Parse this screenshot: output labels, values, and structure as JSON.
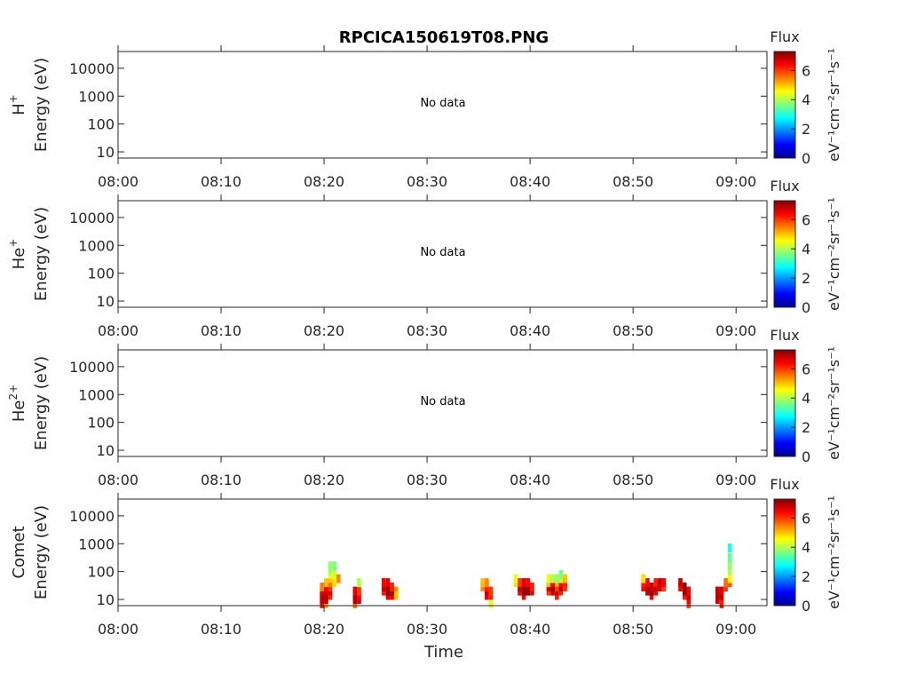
{
  "figure_title": "RPCICA150619T08.PNG",
  "xlabel": "Time",
  "no_data_text": "No data",
  "colorbar": {
    "title": "Flux",
    "unit_label": "eV⁻¹cm⁻²sr⁻¹s⁻¹",
    "ticks": [
      0,
      2,
      4,
      6
    ],
    "range": [
      0,
      7.3
    ],
    "colormap": "jet"
  },
  "x_axis": {
    "start": "08:00",
    "end": "09:03",
    "tick_labels": [
      "08:00",
      "08:10",
      "08:20",
      "08:30",
      "08:40",
      "08:50",
      "09:00"
    ]
  },
  "y_axis": {
    "scale": "log",
    "range": [
      6,
      40000
    ],
    "tick_labels": [
      "10",
      "100",
      "1000",
      "10000"
    ]
  },
  "panels": [
    {
      "ion_base": "H",
      "ion_sup": "+",
      "energy_label": "Energy (eV)",
      "has_data": false
    },
    {
      "ion_base": "He",
      "ion_sup": "+",
      "energy_label": "Energy (eV)",
      "has_data": false
    },
    {
      "ion_base": "He",
      "ion_sup": "2+",
      "energy_label": "Energy (eV)",
      "has_data": false
    },
    {
      "ion_base": "Comet",
      "ion_sup": "",
      "energy_label": "Energy (eV)",
      "has_data": true
    }
  ],
  "chart_data": {
    "type": "heatmap",
    "title": "RPCICA150619T08.PNG",
    "xlabel": "Time",
    "ylabel": "Energy (eV)",
    "yscale": "log",
    "ylim": [
      6,
      40000
    ],
    "xlim": [
      "08:00",
      "09:03"
    ],
    "clim": [
      0,
      7.3
    ],
    "panel": "Comet",
    "cells": [
      {
        "t": "08:19.6",
        "e": 7,
        "v": 6.3
      },
      {
        "t": "08:19.6",
        "e": 10,
        "v": 6.8
      },
      {
        "t": "08:19.6",
        "e": 14,
        "v": 6.9
      },
      {
        "t": "08:19.6",
        "e": 20,
        "v": 6.6
      },
      {
        "t": "08:19.6",
        "e": 28,
        "v": 5.5
      },
      {
        "t": "08:20.0",
        "e": 7,
        "v": 5.2
      },
      {
        "t": "08:20.0",
        "e": 10,
        "v": 6.9
      },
      {
        "t": "08:20.0",
        "e": 14,
        "v": 7.0
      },
      {
        "t": "08:20.0",
        "e": 20,
        "v": 6.8
      },
      {
        "t": "08:20.0",
        "e": 28,
        "v": 6.4
      },
      {
        "t": "08:20.0",
        "e": 40,
        "v": 5.0
      },
      {
        "t": "08:20.4",
        "e": 14,
        "v": 6.2
      },
      {
        "t": "08:20.4",
        "e": 20,
        "v": 6.6
      },
      {
        "t": "08:20.4",
        "e": 28,
        "v": 6.0
      },
      {
        "t": "08:20.4",
        "e": 40,
        "v": 5.6
      },
      {
        "t": "08:20.4",
        "e": 56,
        "v": 5.0
      },
      {
        "t": "08:20.4",
        "e": 80,
        "v": 4.4
      },
      {
        "t": "08:20.4",
        "e": 110,
        "v": 4.0
      },
      {
        "t": "08:20.4",
        "e": 160,
        "v": 3.8
      },
      {
        "t": "08:20.8",
        "e": 40,
        "v": 4.8
      },
      {
        "t": "08:20.8",
        "e": 80,
        "v": 4.2
      },
      {
        "t": "08:20.8",
        "e": 160,
        "v": 3.6
      },
      {
        "t": "08:21.2",
        "e": 56,
        "v": 5.4
      },
      {
        "t": "08:22.8",
        "e": 7,
        "v": 5.6
      },
      {
        "t": "08:22.8",
        "e": 10,
        "v": 6.9
      },
      {
        "t": "08:22.8",
        "e": 14,
        "v": 7.0
      },
      {
        "t": "08:22.8",
        "e": 20,
        "v": 6.6
      },
      {
        "t": "08:23.2",
        "e": 10,
        "v": 6.7
      },
      {
        "t": "08:23.2",
        "e": 14,
        "v": 6.4
      },
      {
        "t": "08:23.2",
        "e": 20,
        "v": 6.0
      },
      {
        "t": "08:23.2",
        "e": 40,
        "v": 4.0
      },
      {
        "t": "08:25.6",
        "e": 20,
        "v": 6.2
      },
      {
        "t": "08:25.6",
        "e": 28,
        "v": 6.8
      },
      {
        "t": "08:25.6",
        "e": 40,
        "v": 6.4
      },
      {
        "t": "08:26.0",
        "e": 14,
        "v": 6.5
      },
      {
        "t": "08:26.0",
        "e": 20,
        "v": 7.1
      },
      {
        "t": "08:26.0",
        "e": 28,
        "v": 7.0
      },
      {
        "t": "08:26.0",
        "e": 40,
        "v": 6.6
      },
      {
        "t": "08:26.4",
        "e": 14,
        "v": 6.6
      },
      {
        "t": "08:26.4",
        "e": 20,
        "v": 6.9
      },
      {
        "t": "08:26.4",
        "e": 28,
        "v": 6.2
      },
      {
        "t": "08:26.8",
        "e": 20,
        "v": 5.4
      },
      {
        "t": "08:26.8",
        "e": 14,
        "v": 5.0
      },
      {
        "t": "08:35.2",
        "e": 28,
        "v": 5.4
      },
      {
        "t": "08:35.2",
        "e": 40,
        "v": 5.0
      },
      {
        "t": "08:35.6",
        "e": 14,
        "v": 6.6
      },
      {
        "t": "08:35.6",
        "e": 20,
        "v": 6.8
      },
      {
        "t": "08:35.6",
        "e": 28,
        "v": 6.2
      },
      {
        "t": "08:35.6",
        "e": 40,
        "v": 5.4
      },
      {
        "t": "08:36.0",
        "e": 7,
        "v": 4.4
      },
      {
        "t": "08:36.0",
        "e": 14,
        "v": 6.2
      },
      {
        "t": "08:36.0",
        "e": 20,
        "v": 6.0
      },
      {
        "t": "08:38.4",
        "e": 40,
        "v": 4.8
      },
      {
        "t": "08:38.4",
        "e": 56,
        "v": 4.4
      },
      {
        "t": "08:38.8",
        "e": 20,
        "v": 6.4
      },
      {
        "t": "08:38.8",
        "e": 28,
        "v": 6.8
      },
      {
        "t": "08:38.8",
        "e": 40,
        "v": 6.0
      },
      {
        "t": "08:39.2",
        "e": 14,
        "v": 6.4
      },
      {
        "t": "08:39.2",
        "e": 20,
        "v": 7.2
      },
      {
        "t": "08:39.2",
        "e": 28,
        "v": 7.1
      },
      {
        "t": "08:39.2",
        "e": 40,
        "v": 6.6
      },
      {
        "t": "08:39.6",
        "e": 20,
        "v": 7.2
      },
      {
        "t": "08:39.6",
        "e": 28,
        "v": 7.0
      },
      {
        "t": "08:39.6",
        "e": 40,
        "v": 6.4
      },
      {
        "t": "08:40.0",
        "e": 20,
        "v": 6.6
      },
      {
        "t": "08:40.0",
        "e": 28,
        "v": 6.2
      },
      {
        "t": "08:41.6",
        "e": 20,
        "v": 6.0
      },
      {
        "t": "08:41.6",
        "e": 28,
        "v": 6.6
      },
      {
        "t": "08:41.6",
        "e": 40,
        "v": 5.0
      },
      {
        "t": "08:41.6",
        "e": 56,
        "v": 4.4
      },
      {
        "t": "08:42.0",
        "e": 20,
        "v": 6.8
      },
      {
        "t": "08:42.0",
        "e": 28,
        "v": 7.2
      },
      {
        "t": "08:42.0",
        "e": 40,
        "v": 6.4
      },
      {
        "t": "08:42.0",
        "e": 56,
        "v": 4.0
      },
      {
        "t": "08:42.4",
        "e": 14,
        "v": 6.2
      },
      {
        "t": "08:42.4",
        "e": 20,
        "v": 6.6
      },
      {
        "t": "08:42.4",
        "e": 28,
        "v": 6.0
      },
      {
        "t": "08:42.4",
        "e": 40,
        "v": 5.2
      },
      {
        "t": "08:42.4",
        "e": 56,
        "v": 3.8
      },
      {
        "t": "08:42.8",
        "e": 20,
        "v": 6.2
      },
      {
        "t": "08:42.8",
        "e": 28,
        "v": 6.8
      },
      {
        "t": "08:42.8",
        "e": 40,
        "v": 6.4
      },
      {
        "t": "08:42.8",
        "e": 56,
        "v": 4.2
      },
      {
        "t": "08:42.8",
        "e": 80,
        "v": 3.6
      },
      {
        "t": "08:43.2",
        "e": 28,
        "v": 6.0
      },
      {
        "t": "08:43.2",
        "e": 40,
        "v": 6.2
      },
      {
        "t": "08:43.2",
        "e": 56,
        "v": 5.0
      },
      {
        "t": "08:50.8",
        "e": 28,
        "v": 6.4
      },
      {
        "t": "08:50.8",
        "e": 40,
        "v": 6.2
      },
      {
        "t": "08:50.8",
        "e": 56,
        "v": 4.8
      },
      {
        "t": "08:51.2",
        "e": 20,
        "v": 6.8
      },
      {
        "t": "08:51.2",
        "e": 28,
        "v": 7.0
      },
      {
        "t": "08:51.2",
        "e": 40,
        "v": 6.4
      },
      {
        "t": "08:51.6",
        "e": 14,
        "v": 6.4
      },
      {
        "t": "08:51.6",
        "e": 20,
        "v": 7.2
      },
      {
        "t": "08:51.6",
        "e": 28,
        "v": 6.8
      },
      {
        "t": "08:52.0",
        "e": 20,
        "v": 6.4
      },
      {
        "t": "08:52.0",
        "e": 28,
        "v": 6.8
      },
      {
        "t": "08:52.0",
        "e": 40,
        "v": 6.2
      },
      {
        "t": "08:52.4",
        "e": 28,
        "v": 6.6
      },
      {
        "t": "08:52.4",
        "e": 40,
        "v": 6.8
      },
      {
        "t": "08:52.8",
        "e": 28,
        "v": 6.0
      },
      {
        "t": "08:52.8",
        "e": 40,
        "v": 6.4
      },
      {
        "t": "08:54.4",
        "e": 28,
        "v": 6.4
      },
      {
        "t": "08:54.4",
        "e": 40,
        "v": 6.8
      },
      {
        "t": "08:54.8",
        "e": 14,
        "v": 6.2
      },
      {
        "t": "08:54.8",
        "e": 20,
        "v": 7.0
      },
      {
        "t": "08:54.8",
        "e": 28,
        "v": 7.2
      },
      {
        "t": "08:55.2",
        "e": 7,
        "v": 6.0
      },
      {
        "t": "08:55.2",
        "e": 10,
        "v": 6.4
      },
      {
        "t": "08:55.2",
        "e": 14,
        "v": 6.8
      },
      {
        "t": "08:55.2",
        "e": 20,
        "v": 6.4
      },
      {
        "t": "08:58.0",
        "e": 10,
        "v": 6.6
      },
      {
        "t": "08:58.0",
        "e": 14,
        "v": 6.9
      },
      {
        "t": "08:58.0",
        "e": 20,
        "v": 6.8
      },
      {
        "t": "08:58.4",
        "e": 7,
        "v": 6.2
      },
      {
        "t": "08:58.4",
        "e": 14,
        "v": 6.8
      },
      {
        "t": "08:58.4",
        "e": 20,
        "v": 6.6
      },
      {
        "t": "08:58.8",
        "e": 28,
        "v": 6.0
      },
      {
        "t": "08:58.8",
        "e": 40,
        "v": 5.6
      },
      {
        "t": "08:59.2",
        "e": 40,
        "v": 5.8
      },
      {
        "t": "08:59.2",
        "e": 56,
        "v": 4.6
      },
      {
        "t": "08:59.2",
        "e": 110,
        "v": 4.0
      },
      {
        "t": "08:59.2",
        "e": 160,
        "v": 3.8
      },
      {
        "t": "08:59.2",
        "e": 320,
        "v": 3.4
      },
      {
        "t": "08:59.2",
        "e": 700,
        "v": 3.0
      }
    ]
  }
}
